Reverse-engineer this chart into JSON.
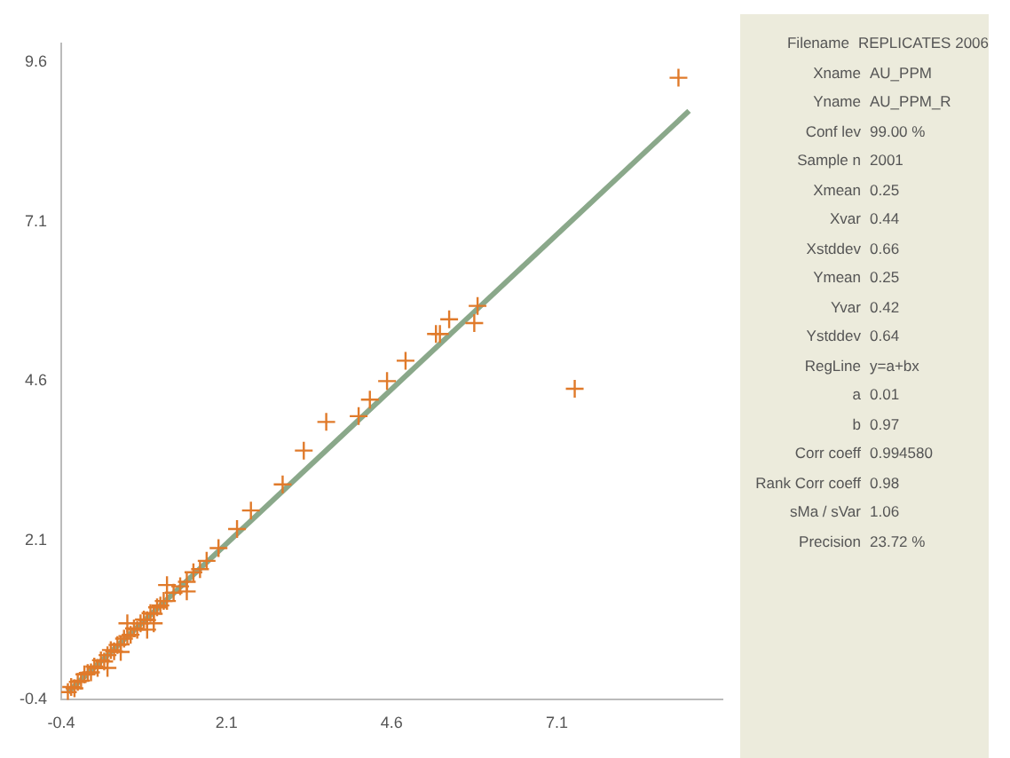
{
  "chart_data": [
    {
      "type": "scatter",
      "xlim": [
        -0.4,
        9.6
      ],
      "ylim": [
        -0.4,
        9.9
      ],
      "xticks": [
        -0.4,
        2.1,
        4.6,
        7.1
      ],
      "yticks": [
        -0.4,
        2.1,
        4.6,
        7.1,
        9.6
      ],
      "grid": false,
      "legend": false,
      "series": [
        {
          "type": "scatter",
          "marker": "cross",
          "color": "#e07a2a",
          "x": [
            -0.3,
            -0.25,
            -0.2,
            -0.15,
            -0.1,
            -0.05,
            0,
            0.05,
            0.1,
            0.15,
            0.2,
            0.25,
            0.3,
            0.35,
            0.4,
            0.45,
            0.5,
            0.55,
            0.6,
            0.65,
            0.7,
            0.75,
            0.8,
            0.85,
            0.9,
            0.95,
            1,
            1.05,
            1.1,
            1.15,
            1.2,
            1.3,
            1.4,
            1.5,
            1.6,
            1.7,
            1.8,
            0.3,
            0.6,
            0.9,
            1.2,
            1.5,
            0.5,
            1.0,
            1.98,
            2.26,
            2.47,
            2.95,
            3.27,
            3.61,
            4.1,
            4.27,
            4.53,
            4.81,
            5.27,
            5.33,
            5.47,
            5.85,
            5.9,
            7.37,
            8.94
          ],
          "values": [
            -0.28,
            -0.2,
            -0.22,
            -0.12,
            -0.1,
            0.0,
            0.02,
            0.03,
            0.12,
            0.1,
            0.22,
            0.2,
            0.3,
            0.38,
            0.36,
            0.46,
            0.47,
            0.56,
            0.6,
            0.62,
            0.72,
            0.7,
            0.8,
            0.86,
            0.85,
            0.96,
            0.95,
            1.05,
            1.08,
            1.15,
            1.15,
            1.28,
            1.38,
            1.45,
            1.6,
            1.65,
            1.78,
            0.1,
            0.8,
            0.7,
            1.4,
            1.3,
            0.35,
            0.8,
            1.98,
            2.28,
            2.57,
            2.98,
            3.51,
            3.96,
            4.05,
            4.31,
            4.6,
            4.92,
            5.34,
            5.34,
            5.57,
            5.51,
            5.78,
            4.48,
            9.36
          ]
        },
        {
          "type": "line",
          "marker": "none",
          "color": "#8aa88a",
          "x": [
            -0.3,
            9.1
          ],
          "values": [
            -0.28,
            8.84
          ]
        }
      ]
    },
    {
      "type": "other",
      "categories": [
        "Filename",
        "Xname",
        "Yname",
        "Conf lev",
        "Sample n",
        "Xmean",
        "Xvar",
        "Xstddev",
        "Ymean",
        "Yvar",
        "Ystddev",
        "RegLine",
        "a",
        "b",
        "Corr coeff",
        "Rank Corr coeff",
        "sMa / sVar",
        "Precision"
      ],
      "value_labels": [
        "REPLICATES 2006",
        "AU_PPM",
        "AU_PPM_R",
        "99.00 %",
        "2001",
        "0.25",
        "0.44",
        "0.66",
        "0.25",
        "0.42",
        "0.64",
        "y=a+bx",
        "0.01",
        "0.97",
        "0.994580",
        "0.98",
        "1.06",
        "23.72 %"
      ]
    }
  ]
}
